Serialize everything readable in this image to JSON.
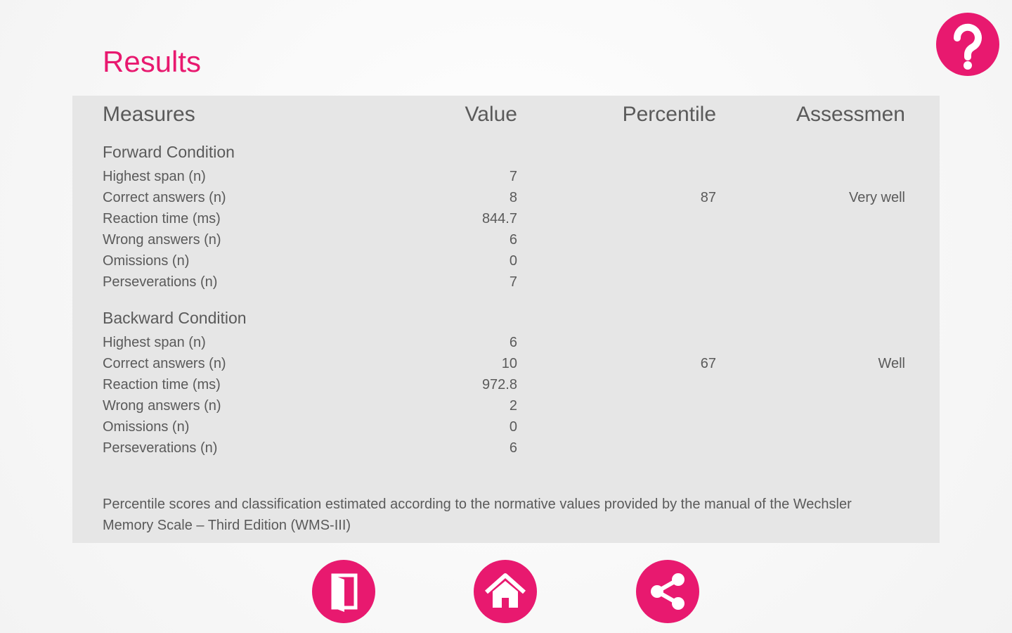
{
  "header": {
    "title": "Results"
  },
  "table": {
    "headers": [
      "Measures",
      "Value",
      "Percentile",
      "Assessmen"
    ],
    "sections": [
      {
        "title": "Forward Condition",
        "rows": [
          {
            "label": "Highest span (n)",
            "value": 7
          },
          {
            "label": "Correct answers (n)",
            "value": 8,
            "percentile": 87,
            "assessment": "Very well"
          },
          {
            "label": "Reaction time (ms)",
            "value": 844.7
          },
          {
            "label": "Wrong answers (n)",
            "value": 6
          },
          {
            "label": "Omissions (n)",
            "value": 0
          },
          {
            "label": "Perseverations (n)",
            "value": 7
          }
        ]
      },
      {
        "title": "Backward Condition",
        "rows": [
          {
            "label": "Highest span (n)",
            "value": 6
          },
          {
            "label": "Correct answers (n)",
            "value": 10,
            "percentile": 67,
            "assessment": "Well"
          },
          {
            "label": "Reaction time (ms)",
            "value": 972.8
          },
          {
            "label": "Wrong answers (n)",
            "value": 2
          },
          {
            "label": "Omissions (n)",
            "value": 0
          },
          {
            "label": "Perseverations (n)",
            "value": 6
          }
        ]
      }
    ],
    "footnote": "Percentile scores and classification estimated according to the normative values provided by the manual of the Wechsler Memory Scale – Third Edition (WMS-III)"
  }
}
